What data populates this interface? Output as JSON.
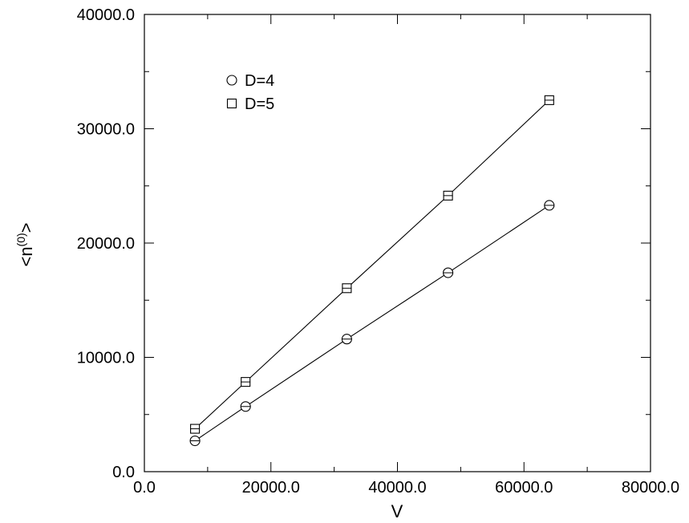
{
  "chart_data": {
    "type": "scatter",
    "title": "",
    "xlabel": "V",
    "ylabel": "<n(0)>",
    "ylabel_parts": {
      "main_left": "<n",
      "superscript": "(0)",
      "main_right": ">"
    },
    "xlim": [
      0,
      80000
    ],
    "ylim": [
      0,
      40000
    ],
    "x_ticks": [
      0,
      20000,
      40000,
      60000,
      80000
    ],
    "x_tick_labels": [
      "0.0",
      "20000.0",
      "40000.0",
      "60000.0",
      "80000.0"
    ],
    "y_ticks": [
      0,
      10000,
      20000,
      30000,
      40000
    ],
    "y_tick_labels": [
      "0.0",
      "10000.0",
      "20000.0",
      "30000.0",
      "40000.0"
    ],
    "grid": false,
    "legend_position": "top-left",
    "series": [
      {
        "name": "D=4",
        "marker": "circle",
        "fit_line": true,
        "x": [
          8000,
          16000,
          32000,
          48000,
          64000
        ],
        "y": [
          2700,
          5700,
          11600,
          17400,
          23300
        ]
      },
      {
        "name": "D=5",
        "marker": "square",
        "fit_line": true,
        "x": [
          8000,
          16000,
          32000,
          48000,
          64000
        ],
        "y": [
          3750,
          7850,
          16050,
          24150,
          32500
        ]
      }
    ]
  }
}
